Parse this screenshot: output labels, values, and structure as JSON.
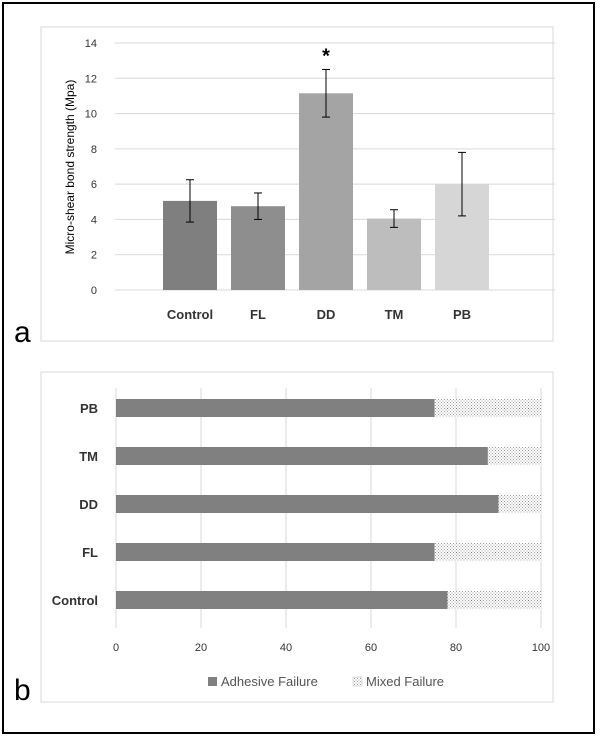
{
  "chart_data": [
    {
      "type": "bar",
      "panel_label": "a",
      "ylabel": "Micro-shear bond strength (Mpa)",
      "ylim": [
        0,
        14
      ],
      "yticks": [
        0,
        2,
        4,
        6,
        8,
        10,
        12,
        14
      ],
      "grid": true,
      "categories": [
        "Control",
        "FL",
        "DD",
        "TM",
        "PB"
      ],
      "values": [
        5.05,
        4.75,
        11.15,
        4.05,
        6.0
      ],
      "error": [
        1.2,
        0.75,
        1.35,
        0.5,
        1.8
      ],
      "colors": [
        "#7f7f7f",
        "#8e8e8e",
        "#a4a4a4",
        "#bdbdbd",
        "#d6d6d6"
      ],
      "annotation": {
        "category": "DD",
        "text": "*"
      }
    },
    {
      "type": "bar",
      "orientation": "horizontal",
      "stacked": true,
      "panel_label": "b",
      "xlim": [
        0,
        100
      ],
      "xticks": [
        0,
        20,
        40,
        60,
        80,
        100
      ],
      "grid": true,
      "categories": [
        "PB",
        "TM",
        "DD",
        "FL",
        "Control"
      ],
      "series": [
        {
          "name": "Adhesive Failure",
          "values": [
            75,
            87.5,
            90,
            75,
            78
          ],
          "color": "#808080",
          "pattern": "solid"
        },
        {
          "name": "Mixed Failure",
          "values": [
            25,
            12.5,
            10,
            25,
            22
          ],
          "color": "#ffffff",
          "pattern": "dotted"
        }
      ],
      "legend_position": "bottom"
    }
  ]
}
